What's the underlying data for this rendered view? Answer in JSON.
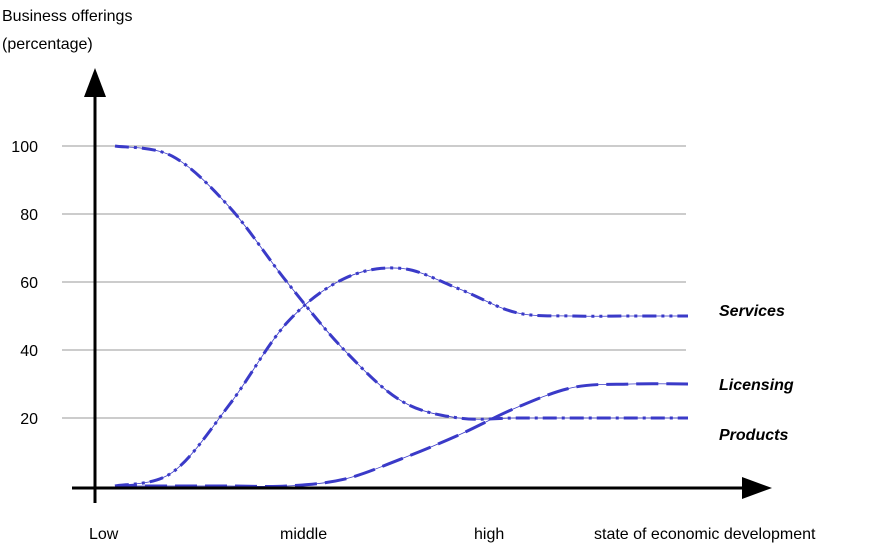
{
  "chart_data": {
    "type": "line",
    "ylabel_line1": "Business offerings",
    "ylabel_line2": "(percentage)",
    "xlabel": "state of economic development",
    "x_ticks": [
      "Low",
      "middle",
      "high"
    ],
    "y_ticks": [
      20,
      40,
      60,
      80,
      100
    ],
    "ylim": [
      0,
      100
    ],
    "grid": true,
    "accent_color": "#3a3ac8",
    "series": [
      {
        "name": "Services",
        "dash": "dash-dot-dot",
        "x": [
          0.0,
          0.5,
          1.0,
          1.5,
          2.0,
          2.5,
          3.0,
          3.5,
          4.0,
          4.5,
          5.0
        ],
        "y": [
          0,
          4,
          24,
          48,
          61,
          64,
          58,
          51,
          50,
          50,
          50
        ]
      },
      {
        "name": "Licensing",
        "dash": "long-dash",
        "x": [
          0.0,
          0.5,
          1.0,
          1.5,
          2.0,
          2.5,
          3.0,
          3.5,
          4.0,
          4.5,
          5.0
        ],
        "y": [
          0,
          0,
          0,
          0,
          2,
          8,
          15,
          23,
          29,
          30,
          30
        ]
      },
      {
        "name": "Products",
        "dash": "dash-dot",
        "x": [
          0.0,
          0.5,
          1.0,
          1.5,
          2.0,
          2.5,
          3.0,
          3.5,
          4.0,
          4.5,
          5.0
        ],
        "y": [
          100,
          97,
          82,
          60,
          40,
          25,
          20,
          20,
          20,
          20,
          20
        ]
      }
    ]
  }
}
